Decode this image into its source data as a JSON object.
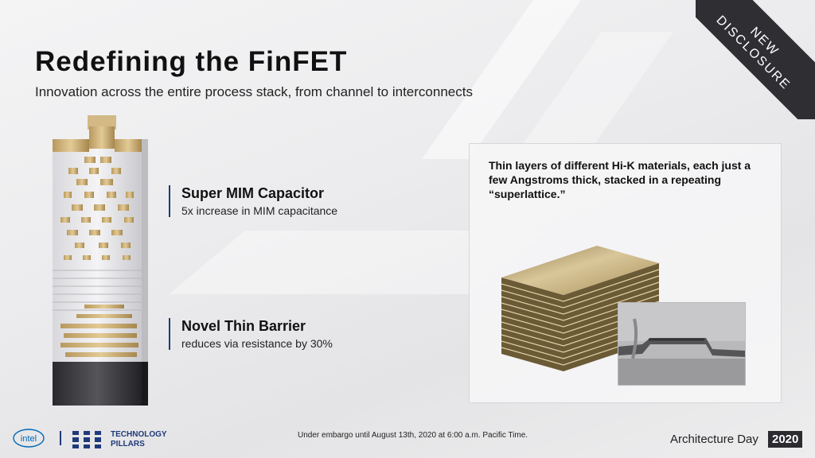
{
  "slide": {
    "title": "Redefining the FinFET",
    "subtitle": "Innovation across the entire process stack, from channel to interconnects",
    "corner_badge": [
      "NEW",
      "DISCLOSURE"
    ]
  },
  "callouts": [
    {
      "heading": "Super MIM Capacitor",
      "subtext": "5x increase in MIM capacitance"
    },
    {
      "heading": "Novel Thin Barrier",
      "subtext": "reduces via resistance by 30%"
    }
  ],
  "panel": {
    "description": "Thin layers of different Hi-K materials, each just a few Angstroms thick, stacked in a repeating “superlattice.”"
  },
  "footer": {
    "logo_text": "intel",
    "pillars_line1": "TECHNOLOGY",
    "pillars_line2": "PILLARS",
    "embargo": "Under embargo until August 13th, 2020 at 6:00 a.m. Pacific Time.",
    "event": "Architecture Day",
    "year": "2020"
  },
  "colors": {
    "accent": "#1f3a7a",
    "badge": "#2f2f33",
    "gold": "#c8ac73"
  }
}
